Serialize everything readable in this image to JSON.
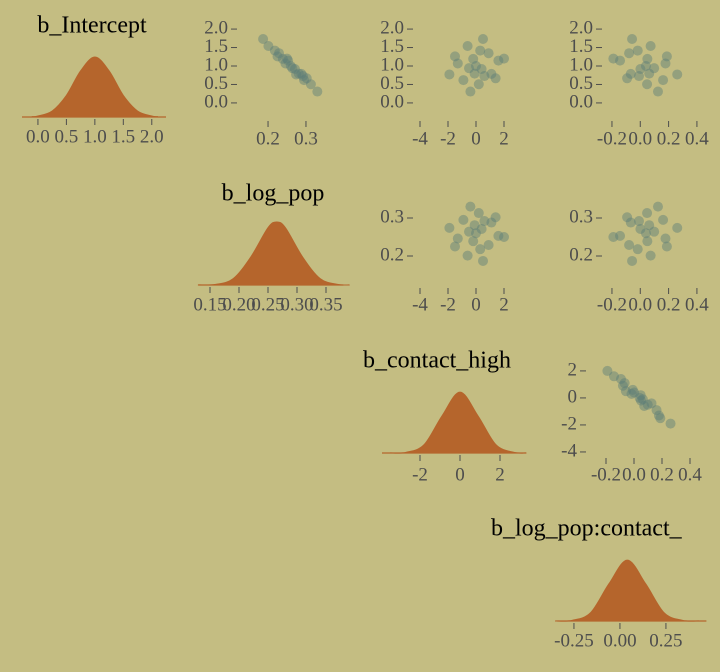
{
  "chart_data": [
    {
      "type": "density",
      "title": "b_Intercept",
      "color": "#b5652c",
      "x": [
        -0.1,
        0,
        0.25,
        0.5,
        0.75,
        1.0,
        1.25,
        1.5,
        1.75,
        2.0,
        2.1
      ],
      "values": [
        0.007,
        0.017,
        0.1,
        0.36,
        0.77,
        1,
        0.77,
        0.36,
        0.1,
        0.017,
        0.007
      ],
      "xlim": [
        -0.28,
        2.25
      ],
      "ylim": [
        0,
        1.1
      ],
      "xticks": [
        {
          "value": 0,
          "label": "0.0"
        },
        0.5,
        {
          "value": 1,
          "label": "1.0"
        },
        1.5,
        {
          "value": 2,
          "label": "2.0"
        }
      ]
    },
    {
      "type": "scatter",
      "color": "#5c7c78",
      "x": [
        0.264,
        0.218,
        0.288,
        0.246,
        0.313,
        0.229,
        0.271,
        0.201,
        0.295,
        0.253,
        0.281,
        0.239,
        0.33,
        0.187,
        0.26,
        0.302,
        0.225,
        0.274,
        0.25,
        0.292
      ],
      "values": [
        0.941,
        1.418,
        0.786,
        1.069,
        0.506,
        1.347,
        0.919,
        1.541,
        0.619,
        1.147,
        0.793,
        1.192,
        0.308,
        1.731,
        1.0,
        0.667,
        1.261,
        0.771,
        1.201,
        0.728
      ],
      "xlim": [
        0.105,
        0.395
      ],
      "ylim": [
        -0.3,
        2.3
      ],
      "xticks": [
        0.2,
        0.3
      ],
      "yticks": [
        {
          "value": 2,
          "label": "2.0"
        },
        1.5,
        {
          "value": 1,
          "label": "1.0"
        },
        0.5,
        {
          "value": 0,
          "label": "0.0"
        }
      ]
    },
    {
      "type": "scatter",
      "color": "#5c7c78",
      "x": [
        -0.5,
        0.3,
        1.1,
        -1.3,
        0.2,
        0.9,
        0.4,
        -0.6,
        -0.9,
        1.6,
        -0.1,
        -0.2,
        -0.4,
        0.5,
        0,
        1.4,
        -1.5,
        -1.9,
        2.0,
        0.6
      ],
      "values": [
        0.941,
        1.418,
        0.786,
        1.069,
        0.506,
        1.347,
        0.919,
        1.541,
        0.619,
        1.147,
        0.793,
        1.192,
        0.308,
        1.731,
        1.0,
        0.667,
        1.261,
        0.771,
        1.201,
        0.728
      ],
      "xlim": [
        -4.3,
        2.9
      ],
      "ylim": [
        -0.3,
        2.3
      ],
      "xticks": [
        -4,
        -2,
        0,
        2
      ],
      "yticks": [
        {
          "value": 2,
          "label": "2.0"
        },
        1.5,
        {
          "value": 1,
          "label": "1.0"
        },
        0.5,
        {
          "value": 0,
          "label": "0.0"
        }
      ]
    },
    {
      "type": "scatter",
      "color": "#5c7c78",
      "x": [
        0.098,
        -0.018,
        -0.067,
        0.178,
        0.048,
        -0.079,
        0.001,
        0.073,
        0.161,
        -0.143,
        0.063,
        0.05,
        0.125,
        -0.058,
        0.04,
        -0.093,
        0.188,
        0.261,
        -0.19,
        -0.009
      ],
      "values": [
        0.941,
        1.418,
        0.786,
        1.069,
        0.506,
        1.347,
        0.919,
        1.541,
        0.619,
        1.147,
        0.793,
        1.192,
        0.308,
        1.731,
        1.0,
        0.667,
        1.261,
        0.771,
        1.201,
        0.728
      ],
      "xlim": [
        -0.3,
        0.45
      ],
      "ylim": [
        -0.3,
        2.3
      ],
      "xticks": [
        -0.2,
        {
          "value": 0,
          "label": "0.0"
        },
        0.2,
        0.4
      ],
      "yticks": [
        {
          "value": 2,
          "label": "2.0"
        },
        1.5,
        {
          "value": 1,
          "label": "1.0"
        },
        0.5,
        {
          "value": 0,
          "label": "0.0"
        }
      ]
    },
    {
      "type": "density",
      "title": "b_log_pop",
      "color": "#b5652c",
      "x": [
        0.13,
        0.16,
        0.19,
        0.22,
        0.25,
        0.265,
        0.28,
        0.31,
        0.34,
        0.37,
        0.39
      ],
      "values": [
        0.001,
        0.011,
        0.1,
        0.44,
        0.91,
        1,
        0.91,
        0.44,
        0.1,
        0.011,
        0.001
      ],
      "xlim": [
        0.13,
        0.38
      ],
      "ylim": [
        0,
        1.1
      ],
      "xticks": [
        0.15,
        {
          "value": 0.2,
          "label": "0.20"
        },
        0.25,
        {
          "value": 0.3,
          "label": "0.30"
        },
        0.35
      ]
    },
    {
      "type": "scatter",
      "color": "#5c7c78",
      "x": [
        -0.5,
        0.3,
        1.1,
        -1.3,
        0.2,
        0.9,
        0.4,
        -0.6,
        -0.9,
        1.6,
        -0.1,
        -0.2,
        -0.4,
        0.5,
        0,
        1.4,
        -1.5,
        -1.9,
        2.0,
        0.6
      ],
      "values": [
        0.264,
        0.218,
        0.288,
        0.246,
        0.313,
        0.229,
        0.271,
        0.201,
        0.295,
        0.253,
        0.281,
        0.239,
        0.33,
        0.187,
        0.26,
        0.302,
        0.225,
        0.274,
        0.25,
        0.292
      ],
      "xlim": [
        -4.3,
        2.9
      ],
      "ylim": [
        0.16,
        0.36
      ],
      "xticks": [
        -4,
        -2,
        0,
        2
      ],
      "yticks": [
        0.3,
        0.2
      ]
    },
    {
      "type": "scatter",
      "color": "#5c7c78",
      "x": [
        0.098,
        -0.018,
        -0.067,
        0.178,
        0.048,
        -0.079,
        0.001,
        0.073,
        0.161,
        -0.143,
        0.063,
        0.05,
        0.125,
        -0.058,
        0.04,
        -0.093,
        0.188,
        0.261,
        -0.19,
        -0.009
      ],
      "values": [
        0.264,
        0.218,
        0.288,
        0.246,
        0.313,
        0.229,
        0.271,
        0.201,
        0.295,
        0.253,
        0.281,
        0.239,
        0.33,
        0.187,
        0.26,
        0.302,
        0.225,
        0.274,
        0.25,
        0.292
      ],
      "xlim": [
        -0.3,
        0.45
      ],
      "ylim": [
        0.16,
        0.36
      ],
      "xticks": [
        -0.2,
        {
          "value": 0,
          "label": "0.0"
        },
        0.2,
        0.4
      ],
      "yticks": [
        0.3,
        0.2
      ]
    },
    {
      "type": "density",
      "title": "b_contact_high",
      "color": "#b5652c",
      "x": [
        -3.5,
        -2.7,
        -1.8,
        -0.9,
        0,
        0.9,
        1.8,
        2.7,
        3.3
      ],
      "values": [
        0.001,
        0.011,
        0.135,
        0.61,
        1,
        0.61,
        0.135,
        0.011,
        0.001
      ],
      "xlim": [
        -3.9,
        3.3
      ],
      "ylim": [
        0,
        1.1
      ],
      "xticks": [
        -2,
        0,
        2
      ]
    },
    {
      "type": "scatter",
      "color": "#5c7c78",
      "x": [
        0.098,
        -0.018,
        -0.067,
        0.178,
        0.048,
        -0.079,
        0.001,
        0.073,
        0.161,
        -0.143,
        0.063,
        0.05,
        0.125,
        -0.058,
        0.04,
        -0.093,
        0.188,
        0.261,
        -0.19,
        -0.009
      ],
      "values": [
        -0.5,
        0.3,
        1.1,
        -1.3,
        0.2,
        0.9,
        0.4,
        -0.6,
        -0.9,
        1.6,
        -0.1,
        -0.2,
        -0.4,
        0.5,
        0,
        1.4,
        -1.5,
        -1.9,
        2.0,
        0.6
      ],
      "xlim": [
        -0.32,
        0.46
      ],
      "ylim": [
        -4.3,
        3.4
      ],
      "xticks": [
        -0.2,
        {
          "value": 0,
          "label": "0.0"
        },
        0.2,
        0.4
      ],
      "yticks": [
        2,
        0,
        -2,
        -4
      ]
    },
    {
      "type": "density",
      "title": "b_log_pop:contact_",
      "color": "#b5652c",
      "x": [
        -0.35,
        -0.26,
        -0.16,
        -0.06,
        0.04,
        0.14,
        0.24,
        0.34,
        0.43
      ],
      "values": [
        0.001,
        0.011,
        0.135,
        0.61,
        1,
        0.61,
        0.135,
        0.011,
        0.001
      ],
      "xlim": [
        -0.34,
        0.47
      ],
      "ylim": [
        0,
        1.1
      ],
      "xticks": [
        -0.25,
        {
          "value": 0,
          "label": "0.00"
        },
        0.25
      ]
    }
  ]
}
